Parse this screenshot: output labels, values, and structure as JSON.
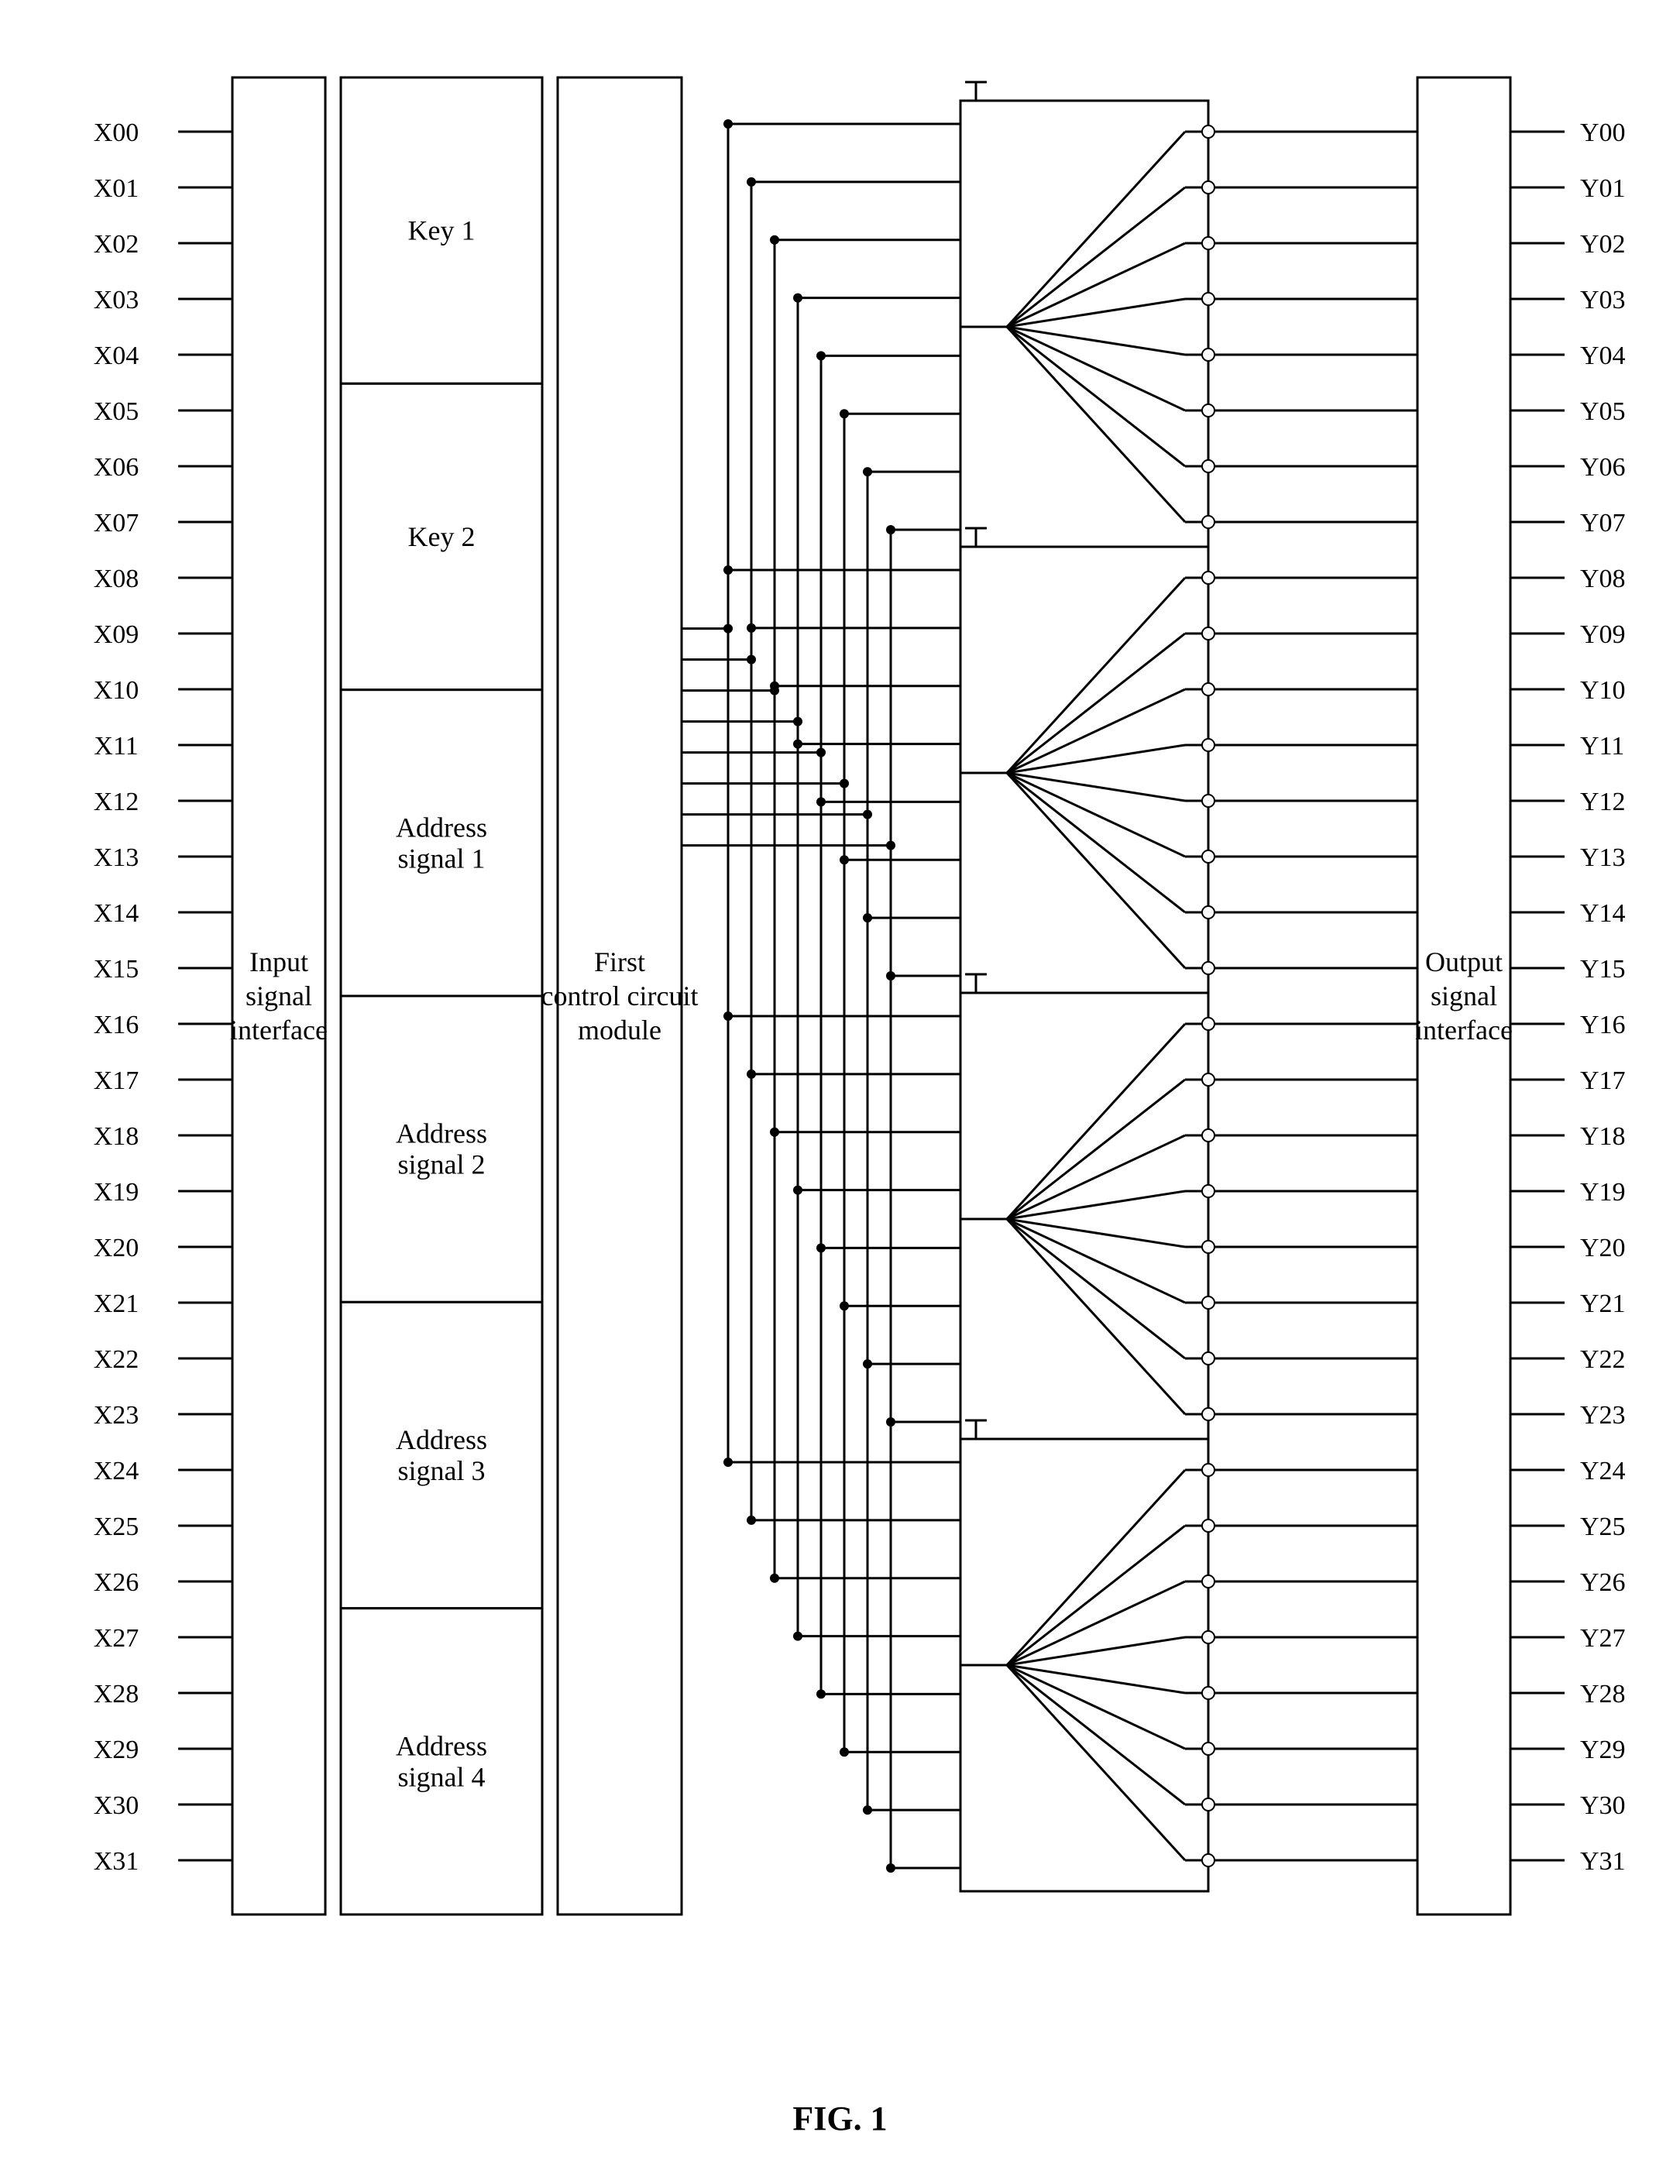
{
  "figure": {
    "caption": "FIG. 1",
    "caption_fontsize": 44,
    "caption_weight": "bold",
    "label_fontsize": 34,
    "block_label_fontsize": 36,
    "background_color": "#ffffff",
    "stroke_color": "#000000",
    "stroke_width": 3
  },
  "blocks": {
    "input_if": {
      "lines": [
        "Input",
        "signal",
        "interface"
      ]
    },
    "output_if": {
      "lines": [
        "Output",
        "signal",
        "interface"
      ]
    },
    "first_ctrl": {
      "lines": [
        "First",
        "control circuit",
        "module"
      ]
    },
    "stage_labels": [
      "Key 1",
      "Key 2",
      "Address\nsignal 1",
      "Address\nsignal 2",
      "Address\nsignal 3",
      "Address\nsignal 4"
    ]
  },
  "x_labels": [
    "X00",
    "X01",
    "X02",
    "X03",
    "X04",
    "X05",
    "X06",
    "X07",
    "X08",
    "X09",
    "X10",
    "X11",
    "X12",
    "X13",
    "X14",
    "X15",
    "X16",
    "X17",
    "X18",
    "X19",
    "X20",
    "X21",
    "X22",
    "X23",
    "X24",
    "X25",
    "X26",
    "X27",
    "X28",
    "X29",
    "X30",
    "X31"
  ],
  "y_labels": [
    "Y00",
    "Y01",
    "Y02",
    "Y03",
    "Y04",
    "Y05",
    "Y06",
    "Y07",
    "Y08",
    "Y09",
    "Y10",
    "Y11",
    "Y12",
    "Y13",
    "Y14",
    "Y15",
    "Y16",
    "Y17",
    "Y18",
    "Y19",
    "Y20",
    "Y21",
    "Y22",
    "Y23",
    "Y24",
    "Y25",
    "Y26",
    "Y27",
    "Y28",
    "Y29",
    "Y30",
    "Y31"
  ],
  "mux": {
    "count": 4,
    "outputs_per": 8,
    "gnd_glyph": "⏚"
  }
}
